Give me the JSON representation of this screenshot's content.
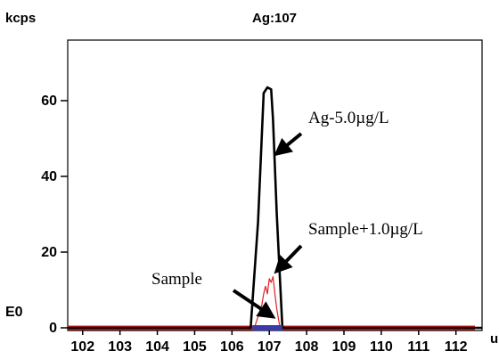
{
  "chart_data": {
    "type": "line",
    "title": "Ag:107",
    "ylabel": "kcps",
    "xlabel": "u",
    "baseline_label": "E0",
    "xlim": [
      101.6,
      112.7
    ],
    "ylim": [
      0,
      76
    ],
    "x_ticks": [
      "102",
      "103",
      "104",
      "105",
      "106",
      "107",
      "108",
      "109",
      "110",
      "111",
      "112"
    ],
    "y_ticks": [
      "0",
      "20",
      "40",
      "60"
    ],
    "series": [
      {
        "name": "Ag-5.0µg/L",
        "color": "#000000",
        "points": [
          [
            101.6,
            0
          ],
          [
            106.5,
            0
          ],
          [
            106.7,
            28
          ],
          [
            106.85,
            62
          ],
          [
            106.95,
            63.5
          ],
          [
            107.05,
            63
          ],
          [
            107.1,
            55
          ],
          [
            107.2,
            30
          ],
          [
            107.3,
            10
          ],
          [
            107.35,
            0
          ],
          [
            112.7,
            0
          ]
        ]
      },
      {
        "name": "Sample+1.0µg/L",
        "color": "#e02020",
        "points": [
          [
            106.6,
            0
          ],
          [
            106.7,
            3
          ],
          [
            106.8,
            6
          ],
          [
            106.85,
            9
          ],
          [
            106.9,
            11
          ],
          [
            106.95,
            9
          ],
          [
            107.0,
            13
          ],
          [
            107.05,
            12
          ],
          [
            107.1,
            13.5
          ],
          [
            107.15,
            9
          ],
          [
            107.2,
            5
          ],
          [
            107.27,
            1
          ],
          [
            107.3,
            0
          ]
        ]
      },
      {
        "name": "Sample",
        "color": "#3a3aa8",
        "points": [
          [
            106.55,
            0
          ],
          [
            107.35,
            0
          ]
        ]
      }
    ],
    "annotations": [
      {
        "text": "Ag-5.0µg/L",
        "points_to": [
          107.05,
          45
        ]
      },
      {
        "text": "Sample+1.0µg/L",
        "points_to": [
          107.05,
          14
        ]
      },
      {
        "text": "Sample",
        "points_to": [
          106.95,
          2
        ]
      }
    ],
    "baseline_color": "#e02020",
    "grid": false,
    "legend": "none"
  }
}
